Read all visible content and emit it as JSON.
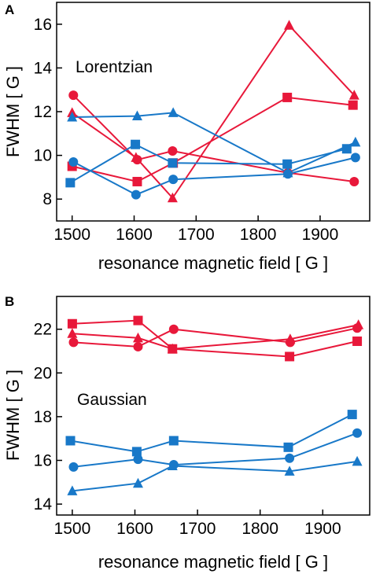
{
  "colors": {
    "red": "#e8183a",
    "blue": "#1878c8"
  },
  "chart_data": [
    {
      "type": "line",
      "panel_label": "A",
      "annotation": "Lorentzian",
      "xlabel": "resonance magnetic field [ G ]",
      "ylabel": "FWHM [ G ]",
      "xlim": [
        1475,
        1980
      ],
      "ylim": [
        7,
        17
      ],
      "xticks": [
        1500,
        1600,
        1700,
        1800,
        1900
      ],
      "yticks": [
        8,
        10,
        12,
        14,
        16
      ],
      "series": [
        {
          "color": "red",
          "marker": "triangle",
          "x": [
            1500,
            1603,
            1662,
            1850,
            1955
          ],
          "y": [
            11.95,
            9.9,
            8.05,
            15.95,
            12.75
          ]
        },
        {
          "color": "red",
          "marker": "circle",
          "x": [
            1502,
            1605,
            1662,
            1848,
            1955
          ],
          "y": [
            12.75,
            9.8,
            10.2,
            9.2,
            8.8
          ]
        },
        {
          "color": "red",
          "marker": "square",
          "x": [
            1500,
            1605,
            1663,
            1847,
            1953
          ],
          "y": [
            9.5,
            8.8,
            9.65,
            12.65,
            12.3
          ]
        },
        {
          "color": "blue",
          "marker": "triangle",
          "x": [
            1500,
            1605,
            1663,
            1848,
            1957
          ],
          "y": [
            11.75,
            11.8,
            11.95,
            9.2,
            10.6
          ]
        },
        {
          "color": "blue",
          "marker": "circle",
          "x": [
            1502,
            1603,
            1663,
            1848,
            1957
          ],
          "y": [
            9.7,
            8.2,
            8.9,
            9.15,
            9.9
          ]
        },
        {
          "color": "blue",
          "marker": "square",
          "x": [
            1497,
            1602,
            1662,
            1847,
            1943
          ],
          "y": [
            8.75,
            10.5,
            9.65,
            9.6,
            10.3
          ]
        }
      ]
    },
    {
      "type": "line",
      "panel_label": "B",
      "annotation": "Gaussian",
      "xlabel": "resonance magnetic field [ G ]",
      "ylabel": "FWHM [ G ]",
      "xlim": [
        1475,
        1975
      ],
      "ylim": [
        13.5,
        23.5
      ],
      "xticks": [
        1500,
        1600,
        1700,
        1800,
        1900
      ],
      "yticks": [
        14,
        16,
        18,
        20,
        22
      ],
      "series": [
        {
          "color": "red",
          "marker": "triangle",
          "x": [
            1500,
            1605,
            1660,
            1848,
            1957
          ],
          "y": [
            21.8,
            21.6,
            21.1,
            21.55,
            22.2
          ]
        },
        {
          "color": "red",
          "marker": "circle",
          "x": [
            1502,
            1605,
            1662,
            1848,
            1955
          ],
          "y": [
            21.4,
            21.2,
            22.0,
            21.4,
            22.05
          ]
        },
        {
          "color": "red",
          "marker": "square",
          "x": [
            1500,
            1605,
            1660,
            1847,
            1955
          ],
          "y": [
            22.25,
            22.4,
            21.1,
            20.75,
            21.45
          ]
        },
        {
          "color": "blue",
          "marker": "triangle",
          "x": [
            1500,
            1605,
            1660,
            1847,
            1955
          ],
          "y": [
            14.6,
            14.95,
            15.75,
            15.5,
            15.95
          ]
        },
        {
          "color": "blue",
          "marker": "circle",
          "x": [
            1502,
            1605,
            1662,
            1847,
            1955
          ],
          "y": [
            15.7,
            16.05,
            15.8,
            16.1,
            17.25
          ]
        },
        {
          "color": "blue",
          "marker": "square",
          "x": [
            1497,
            1603,
            1662,
            1845,
            1947
          ],
          "y": [
            16.9,
            16.4,
            16.9,
            16.6,
            18.1
          ]
        }
      ]
    }
  ]
}
